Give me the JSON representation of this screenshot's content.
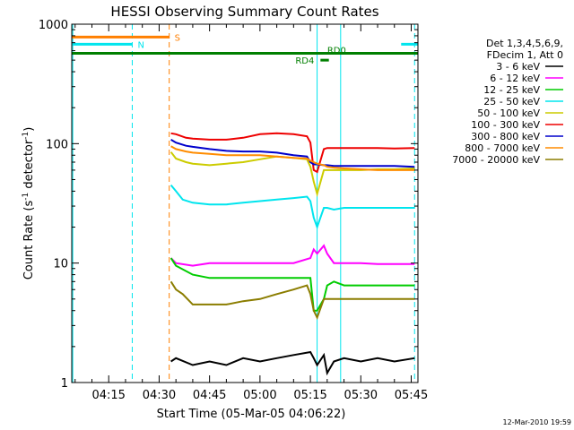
{
  "chart_data": {
    "type": "line",
    "title": "HESSI Observing Summary Count Rates",
    "xlabel": "Start Time (05-Mar-05 04:06:22)",
    "ylabel_main": "Count Rate (s",
    "ylabel_sup": "-1",
    "ylabel_mid": " detector",
    "ylabel_end": ")",
    "x_unit": "minutes since 04:00 UT",
    "xlim": [
      4.0,
      107.0
    ],
    "ylim": [
      1,
      1000
    ],
    "yscale": "log",
    "x_ticks": [
      {
        "value": 15,
        "label": "04:15"
      },
      {
        "value": 30,
        "label": "04:30"
      },
      {
        "value": 45,
        "label": "04:45"
      },
      {
        "value": 60,
        "label": "05:00"
      },
      {
        "value": 75,
        "label": "05:15"
      },
      {
        "value": 90,
        "label": "05:30"
      },
      {
        "value": 105,
        "label": "05:45"
      }
    ],
    "y_ticks": [
      {
        "value": 1,
        "label": "1"
      },
      {
        "value": 10,
        "label": "10"
      },
      {
        "value": 100,
        "label": "100"
      },
      {
        "value": 1000,
        "label": "1000"
      }
    ],
    "legend_header": [
      "Det 1,3,4,5,6,9,",
      "FDecim 1, Att 0"
    ],
    "legend_position": "right",
    "timestamp": "12-Mar-2010 19:59",
    "series": [
      {
        "name": "3 - 6 keV",
        "color": "#000000",
        "x": [
          33.5,
          35,
          40,
          45,
          50,
          55,
          60,
          65,
          70,
          75,
          76,
          77,
          79,
          80,
          82,
          85,
          90,
          95,
          100,
          106
        ],
        "y": [
          1.5,
          1.6,
          1.4,
          1.5,
          1.4,
          1.6,
          1.5,
          1.6,
          1.7,
          1.8,
          1.6,
          1.4,
          1.7,
          1.2,
          1.5,
          1.6,
          1.5,
          1.6,
          1.5,
          1.6
        ]
      },
      {
        "name": "6 - 12 keV",
        "color": "#ff00ff",
        "x": [
          33.5,
          35,
          40,
          45,
          50,
          55,
          60,
          65,
          70,
          75,
          76,
          77,
          79,
          80,
          82,
          85,
          90,
          95,
          100,
          106
        ],
        "y": [
          11,
          10,
          9.5,
          10,
          10,
          10,
          10,
          10,
          10,
          11,
          13,
          12,
          14,
          12,
          10,
          10,
          10,
          9.8,
          9.8,
          9.8
        ]
      },
      {
        "name": "12 - 25 keV",
        "color": "#00cc00",
        "x": [
          33.5,
          35,
          40,
          45,
          50,
          55,
          60,
          65,
          70,
          75,
          76,
          77,
          79,
          80,
          82,
          85,
          90,
          95,
          100,
          106
        ],
        "y": [
          11,
          9.5,
          8,
          7.5,
          7.5,
          7.5,
          7.5,
          7.5,
          7.5,
          7.5,
          4,
          4,
          5,
          6.5,
          7,
          6.5,
          6.5,
          6.5,
          6.5,
          6.5
        ]
      },
      {
        "name": "25 - 50 keV",
        "color": "#00e5ee",
        "x": [
          33.5,
          35,
          37,
          40,
          45,
          50,
          55,
          60,
          65,
          70,
          74,
          75,
          76,
          77,
          79,
          80,
          82,
          85,
          90,
          95,
          100,
          106
        ],
        "y": [
          45,
          40,
          34,
          32,
          31,
          31,
          32,
          33,
          34,
          35,
          36,
          33,
          24,
          20,
          29,
          29,
          28,
          29,
          29,
          29,
          29,
          29
        ]
      },
      {
        "name": "50 - 100 keV",
        "color": "#cccc00",
        "x": [
          33.5,
          35,
          38,
          40,
          45,
          50,
          55,
          60,
          65,
          70,
          74,
          75,
          76,
          77,
          79,
          80,
          82,
          85,
          90,
          95,
          100,
          106
        ],
        "y": [
          85,
          75,
          70,
          68,
          66,
          68,
          70,
          74,
          78,
          76,
          74,
          64,
          48,
          38,
          60,
          60,
          60,
          60,
          60,
          61,
          61,
          62
        ]
      },
      {
        "name": "100 - 300 keV",
        "color": "#ee0000",
        "x": [
          33.5,
          35,
          38,
          40,
          45,
          50,
          55,
          60,
          65,
          70,
          74,
          75,
          76,
          77,
          79,
          80,
          82,
          85,
          90,
          95,
          100,
          106
        ],
        "y": [
          122,
          120,
          112,
          110,
          108,
          108,
          112,
          120,
          122,
          120,
          115,
          102,
          60,
          58,
          90,
          92,
          92,
          92,
          92,
          92,
          91,
          92
        ]
      },
      {
        "name": "300 - 800 keV",
        "color": "#0000cc",
        "x": [
          33.5,
          35,
          38,
          40,
          45,
          50,
          55,
          60,
          65,
          70,
          74,
          75,
          76,
          77,
          79,
          80,
          82,
          85,
          90,
          95,
          100,
          106
        ],
        "y": [
          108,
          102,
          96,
          94,
          90,
          87,
          86,
          86,
          84,
          80,
          78,
          70,
          67,
          67,
          66,
          66,
          65,
          65,
          65,
          65,
          65,
          64
        ]
      },
      {
        "name": "800 - 7000 keV",
        "color": "#ff8c00",
        "x": [
          33.5,
          35,
          38,
          40,
          45,
          50,
          55,
          60,
          65,
          70,
          74,
          75,
          76,
          77,
          79,
          80,
          82,
          85,
          90,
          95,
          100,
          106
        ],
        "y": [
          95,
          90,
          86,
          84,
          82,
          80,
          80,
          80,
          78,
          76,
          75,
          72,
          70,
          68,
          66,
          64,
          63,
          62,
          61,
          60,
          60,
          60
        ]
      },
      {
        "name": "7000 - 20000 keV",
        "color": "#8b7d00",
        "x": [
          33.5,
          35,
          37,
          40,
          45,
          50,
          55,
          60,
          65,
          70,
          74,
          75,
          76,
          77,
          79,
          80,
          82,
          85,
          90,
          95,
          100,
          106
        ],
        "y": [
          7,
          6,
          5.5,
          4.5,
          4.5,
          4.5,
          4.8,
          5,
          5.5,
          6,
          6.5,
          5.5,
          4,
          3.5,
          5,
          5,
          5,
          5,
          5,
          5,
          5,
          5
        ]
      }
    ],
    "attenuator_bars": [
      {
        "label": "S",
        "color": "#ff7f00",
        "x": [
          4.0,
          33.0
        ],
        "y": 780
      },
      {
        "label": "N",
        "color": "#00e5ee",
        "x": [
          4.0,
          22.0
        ],
        "y": 680
      },
      {
        "label": "",
        "color": "#00e5ee",
        "x": [
          102.0,
          107.0
        ],
        "y": 680
      },
      {
        "label": "RD0",
        "color": "#007f00",
        "x": [
          4.0,
          107.0
        ],
        "y": 570
      },
      {
        "label": "RD4",
        "color": "#007f00",
        "x": [
          78.0,
          80.5
        ],
        "y": 500
      }
    ],
    "vertical_markers": [
      {
        "x": 4.3,
        "color": "#00e5ee",
        "style": "solid"
      },
      {
        "x": 22.0,
        "color": "#00e5ee",
        "style": "dashed"
      },
      {
        "x": 33.0,
        "color": "#ff7f00",
        "style": "dashed"
      },
      {
        "x": 77.0,
        "color": "#00e5ee",
        "style": "solid"
      },
      {
        "x": 84.0,
        "color": "#00e5ee",
        "style": "solid"
      },
      {
        "x": 106.0,
        "color": "#00e5ee",
        "style": "dashed"
      }
    ]
  }
}
